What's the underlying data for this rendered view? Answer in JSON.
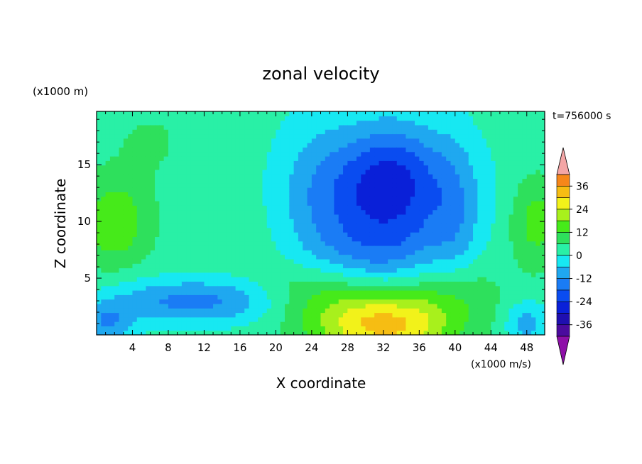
{
  "chart_data": {
    "type": "heatmap",
    "title": "zonal velocity",
    "xlabel": "X coordinate",
    "ylabel": "Z coordinate",
    "x_units_label": "(x1000 m/s)",
    "y_units_label": "(x1000 m)",
    "time_label": "t=756000 s",
    "xlim": [
      0,
      50
    ],
    "ylim": [
      0,
      19.7
    ],
    "x_ticks": [
      4,
      8,
      12,
      16,
      20,
      24,
      28,
      32,
      36,
      40,
      44,
      48
    ],
    "y_ticks": [
      5,
      10,
      15
    ],
    "colorbar": {
      "tick_labels": [
        "36",
        "24",
        "12",
        "0",
        "-12",
        "-24",
        "-36"
      ],
      "tick_values": [
        36,
        24,
        12,
        0,
        -12,
        -24,
        -36
      ],
      "levels": [
        -42,
        -36,
        -30,
        -24,
        -18,
        -12,
        -6,
        0,
        6,
        12,
        18,
        24,
        30,
        36,
        42
      ],
      "colors": [
        "#4b0b9e",
        "#1f0fb0",
        "#0a20d8",
        "#0a4cf0",
        "#1a7cf5",
        "#1fa8f0",
        "#17e8f2",
        "#29f0a6",
        "#2ee05c",
        "#46ea1a",
        "#a8f01c",
        "#f2f21a",
        "#f6bd13",
        "#f6871a",
        "#f23e1a",
        "#e8112a"
      ],
      "under_color": "#8e0fa8",
      "over_color": "#f4a6a6"
    },
    "field_samples_note_free": true,
    "features": [
      {
        "x": 34,
        "z": 12,
        "value": -28
      },
      {
        "x": 32,
        "z": 0.5,
        "value": 24
      },
      {
        "x": 2,
        "z": 10,
        "value": 14
      },
      {
        "x": 49,
        "z": 10,
        "value": 12
      },
      {
        "x": 14,
        "z": 3,
        "value": -10
      },
      {
        "x": 1,
        "z": 1,
        "value": -18
      },
      {
        "x": 48,
        "z": 1,
        "value": -16
      }
    ]
  }
}
